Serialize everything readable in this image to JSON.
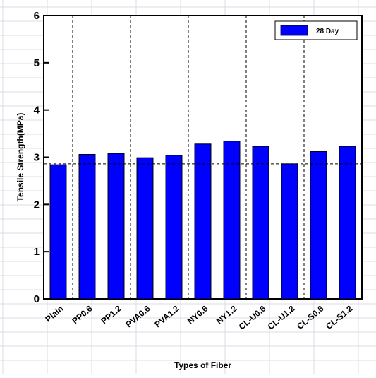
{
  "chart_data": {
    "type": "bar",
    "categories": [
      "Plain",
      "PP0.6",
      "PP1.2",
      "PVA0.6",
      "PVA1.2",
      "NY0.6",
      "NY1.2",
      "CL-U0.6",
      "CL-U1.2",
      "CL-S0.6",
      "CL-S1.2"
    ],
    "series": [
      {
        "name": "28 Day",
        "values": [
          2.84,
          3.06,
          3.08,
          2.99,
          3.04,
          3.28,
          3.34,
          3.23,
          2.86,
          3.12,
          3.23
        ]
      }
    ],
    "xlabel": "Types of  Fiber",
    "ylabel": "Tensile Strength(MPa)",
    "ylim": [
      0,
      6
    ],
    "yticks": [
      "0",
      "1",
      "2",
      "3",
      "4",
      "5",
      "6"
    ],
    "reference_line_value": 2.86,
    "bar_color": "#0000ff",
    "legend_position": "top-right",
    "background_grid": true
  }
}
